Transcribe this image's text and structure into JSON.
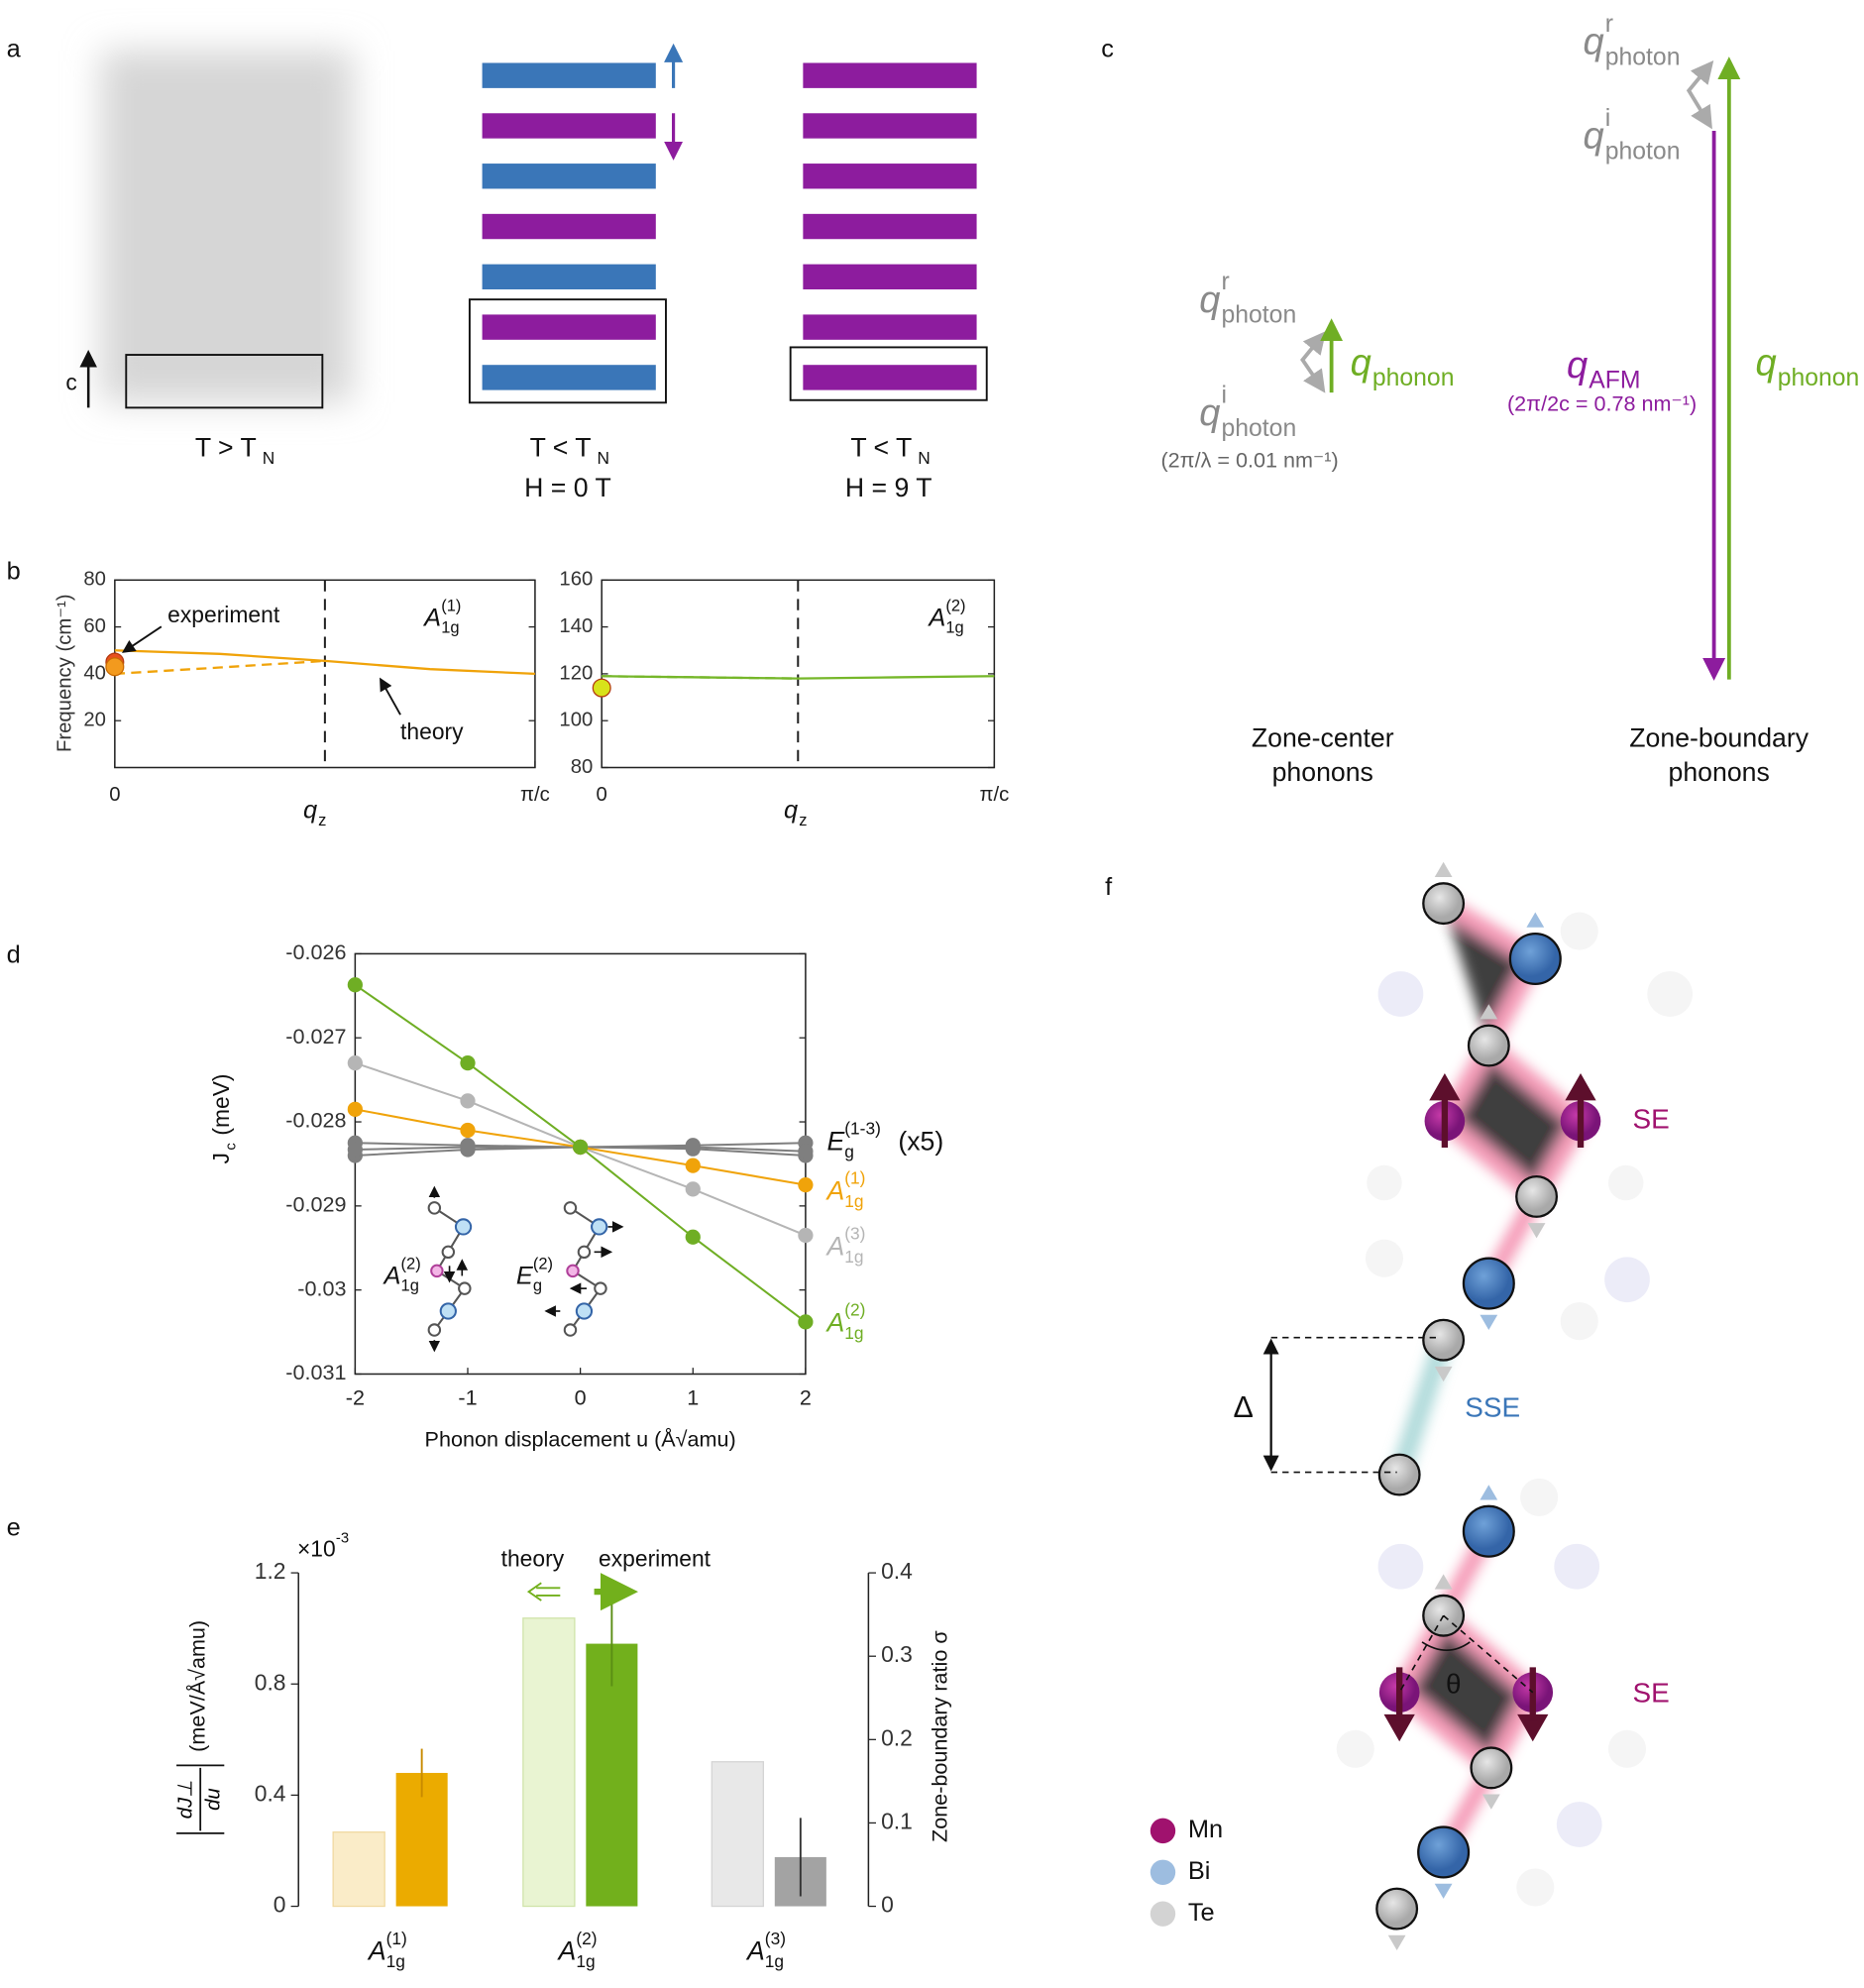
{
  "panel_labels": [
    "a",
    "b",
    "c",
    "d",
    "e",
    "f"
  ],
  "panel_a": {
    "axis_label": "c",
    "stacks": [
      {
        "label": {
          "base": "T > T",
          "sub": "N"
        },
        "colors": []
      },
      {
        "label": {
          "base": "T < T",
          "sub": "N"
        },
        "field": "H = 0 T",
        "colors": [
          "#3a76b8",
          "#8d1c9e",
          "#3a76b8",
          "#8d1c9e",
          "#3a76b8",
          "#8d1c9e",
          "#3a76b8"
        ]
      },
      {
        "label": {
          "base": "T < T",
          "sub": "N"
        },
        "field": "H = 9 T",
        "colors": [
          "#8d1c9e",
          "#8d1c9e",
          "#8d1c9e",
          "#8d1c9e",
          "#8d1c9e",
          "#8d1c9e",
          "#8d1c9e"
        ]
      }
    ]
  },
  "panel_c": {
    "zone_center": {
      "q_r": {
        "base": "q",
        "sub": "photon",
        "sup": "r"
      },
      "q_i": {
        "base": "q",
        "sub": "photon",
        "sup": "i"
      },
      "q_phonon": {
        "base": "q",
        "sub": "phonon"
      },
      "note": "(2π/λ = 0.01 nm⁻¹)",
      "title": [
        "Zone-center",
        "phonons"
      ]
    },
    "zone_boundary": {
      "q_r": {
        "base": "q",
        "sub": "photon",
        "sup": "r"
      },
      "q_i": {
        "base": "q",
        "sub": "photon",
        "sup": "i"
      },
      "q_phonon": {
        "base": "q",
        "sub": "phonon"
      },
      "q_afm": {
        "base": "q",
        "sub": "AFM"
      },
      "note": "(2π/2c = 0.78 nm⁻¹)",
      "title": [
        "Zone-boundary",
        "phonons"
      ]
    }
  },
  "chart_data": [
    {
      "type": "line",
      "ylabel": "Frequency (cm⁻¹)",
      "xlabel": {
        "base": "q",
        "sub": "z"
      },
      "x": [
        0,
        0.25,
        0.5,
        0.75,
        1
      ],
      "xlim": [
        0,
        1
      ],
      "xticks": [
        0,
        {
          "value": 1,
          "label": "π/c"
        }
      ],
      "ylim": [
        0,
        80
      ],
      "yticks": [
        20,
        40,
        60,
        80
      ],
      "vline_x": 0.5,
      "series": [
        {
          "color": "#f0a30a",
          "dash": false,
          "values": [
            50,
            48.5,
            45.5,
            42,
            40
          ]
        },
        {
          "color": "#f0a30a",
          "dash": true,
          "values": [
            40,
            42.7,
            45.5,
            null,
            null
          ]
        }
      ],
      "markers": {
        "x": [
          0,
          0
        ],
        "values": [
          45,
          43
        ],
        "colors": [
          "#e8501e",
          "#f39a1e"
        ]
      },
      "mode_label": {
        "base": "A",
        "sub": "1g",
        "sup": "(1)"
      },
      "annotations": [
        "experiment",
        "theory"
      ]
    },
    {
      "type": "line",
      "xlabel": {
        "base": "q",
        "sub": "z"
      },
      "x": [
        0,
        0.25,
        0.5,
        0.75,
        1
      ],
      "xlim": [
        0,
        1
      ],
      "xticks": [
        0,
        {
          "value": 1,
          "label": "π/c"
        }
      ],
      "ylim": [
        80,
        160
      ],
      "yticks": [
        80,
        100,
        120,
        140,
        160
      ],
      "vline_x": 0.5,
      "series": [
        {
          "color": "#76b72a",
          "dash": false,
          "values": [
            119,
            118.5,
            118,
            118.5,
            119
          ]
        },
        {
          "color": "#76b72a",
          "dash": true,
          "values": [
            119,
            118.5,
            118,
            null,
            null
          ]
        }
      ],
      "markers": {
        "x": [
          0
        ],
        "values": [
          114
        ],
        "colors": [
          "#d8e21a"
        ]
      },
      "mode_label": {
        "base": "A",
        "sub": "1g",
        "sup": "(2)"
      }
    },
    {
      "type": "line",
      "ylabel": {
        "base": "J",
        "sub": "c",
        "rest": "(meV)"
      },
      "xlabel": "Phonon displacement u (Å√amu)",
      "x": [
        -2,
        -1,
        0,
        1,
        2
      ],
      "xlim": [
        -2,
        2
      ],
      "xticks": [
        -2,
        -1,
        0,
        1,
        2
      ],
      "ylim": [
        -0.031,
        -0.026
      ],
      "yticks": [
        -0.031,
        -0.03,
        -0.029,
        -0.028,
        -0.027,
        -0.026
      ],
      "series": [
        {
          "name": {
            "base": "E",
            "sub": "g",
            "sup": "(1-3)",
            "suffix": "(x5)"
          },
          "color": "#7f7f7f",
          "values": [
            -0.02825,
            -0.02828,
            -0.0283,
            -0.02828,
            -0.02825
          ]
        },
        {
          "color": "#7f7f7f",
          "values": [
            -0.0284,
            -0.02833,
            -0.0283,
            -0.02832,
            -0.0284
          ]
        },
        {
          "color": "#7f7f7f",
          "values": [
            -0.02833,
            -0.0283,
            -0.0283,
            -0.0283,
            -0.02835
          ]
        },
        {
          "name": {
            "base": "A",
            "sub": "1g",
            "sup": "(3)"
          },
          "color": "#b5b5b5",
          "values": [
            -0.0273,
            -0.02775,
            -0.0283,
            -0.0288,
            -0.02935
          ]
        },
        {
          "name": {
            "base": "A",
            "sub": "1g",
            "sup": "(1)"
          },
          "color": "#f0a30a",
          "values": [
            -0.02785,
            -0.0281,
            -0.0283,
            -0.02852,
            -0.02875
          ]
        },
        {
          "name": {
            "base": "A",
            "sub": "1g",
            "sup": "(2)"
          },
          "color": "#6fae24",
          "values": [
            -0.02637,
            -0.0273,
            -0.0283,
            -0.02937,
            -0.03038
          ]
        }
      ],
      "insets": [
        {
          "base": "A",
          "sub": "1g",
          "sup": "(2)"
        },
        {
          "base": "E",
          "sub": "g",
          "sup": "(2)"
        }
      ]
    },
    {
      "type": "bar",
      "categories": [
        {
          "base": "A",
          "sub": "1g",
          "sup": "(1)"
        },
        {
          "base": "A",
          "sub": "1g",
          "sup": "(2)"
        },
        {
          "base": "A",
          "sub": "1g",
          "sup": "(3)"
        }
      ],
      "ylim": [
        0,
        1.2
      ],
      "yticks": [
        0,
        0.4,
        0.8,
        1.2
      ],
      "y_multiplier": {
        "base": "×10",
        "sup": "-3"
      },
      "ylabel": "(meV/Å√amu)",
      "ylabel_fraction": {
        "num": "dJ⊥",
        "den": "du"
      },
      "y2lim": [
        0,
        0.4
      ],
      "y2ticks": [
        0,
        0.1,
        0.2,
        0.3,
        0.4
      ],
      "y2label": "Zone-boundary ratio σ",
      "series": [
        {
          "name": "theory",
          "colors": [
            "#faecc8",
            "#e9f4d2",
            "#e8e8e8"
          ],
          "edge": [
            "#f0d9a0",
            "#cfe3a8",
            "#d4d4d4"
          ],
          "values": [
            0.267,
            1.037,
            0.52
          ]
        },
        {
          "name": "experiment",
          "axis": "y2",
          "colors": [
            "#ebab00",
            "#72b01c",
            "#a3a3a3"
          ],
          "edge": [
            "#c88a00",
            "#5a8e14",
            "#333333"
          ],
          "values": [
            0.16,
            0.315,
            0.059
          ],
          "errors": [
            0.029,
            0.051,
            0.047
          ]
        }
      ]
    }
  ],
  "panel_f": {
    "labels": [
      "SE",
      "SSE",
      "Δ",
      "θ",
      "SE"
    ],
    "legend": [
      {
        "label": "Mn",
        "color": "#a0126e"
      },
      {
        "label": "Bi",
        "color": "#9dbde0"
      },
      {
        "label": "Te",
        "color": "#d3d3d3"
      }
    ]
  }
}
